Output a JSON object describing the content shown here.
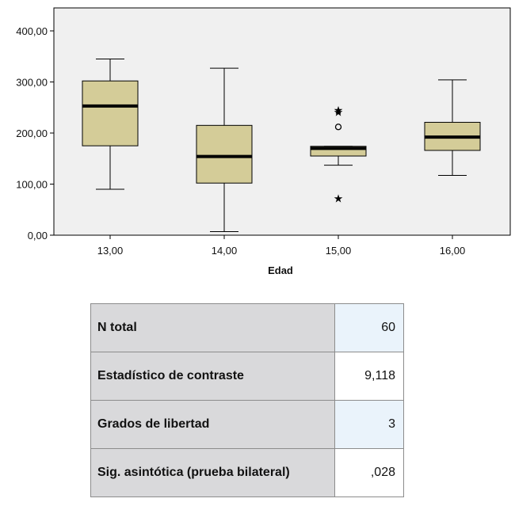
{
  "chart_data": {
    "type": "boxplot",
    "xlabel": "Edad",
    "ylabel": "",
    "ylim": [
      0,
      450
    ],
    "y_ticks": [
      "0,00",
      "100,00",
      "200,00",
      "300,00",
      "400,00"
    ],
    "categories": [
      "13,00",
      "14,00",
      "15,00",
      "16,00"
    ],
    "boxes": [
      {
        "category": "13,00",
        "whisker_low": 90,
        "q1": 175,
        "median": 253,
        "q3": 302,
        "whisker_high": 345,
        "outliers": [],
        "extremes": []
      },
      {
        "category": "14,00",
        "whisker_low": 7,
        "q1": 102,
        "median": 154,
        "q3": 215,
        "whisker_high": 327,
        "outliers": [],
        "extremes": []
      },
      {
        "category": "15,00",
        "whisker_low": 137,
        "q1": 155,
        "median": 170,
        "q3": 174,
        "whisker_high": 174,
        "outliers": [
          212
        ],
        "extremes": [
          72,
          241,
          245
        ]
      },
      {
        "category": "16,00",
        "whisker_low": 117,
        "q1": 166,
        "median": 192,
        "q3": 221,
        "whisker_high": 304,
        "outliers": [],
        "extremes": []
      }
    ],
    "colors": {
      "box_fill": "#d4cc98",
      "plot_background": "#f0f0f0",
      "median": "#000000"
    }
  },
  "stats": [
    {
      "label": "N total",
      "value": "60"
    },
    {
      "label": "Estadístico de contraste",
      "value": "9,118"
    },
    {
      "label": "Grados de libertad",
      "value": "3"
    },
    {
      "label": "Sig. asintótica (prueba bilateral)",
      "value": ",028"
    }
  ]
}
